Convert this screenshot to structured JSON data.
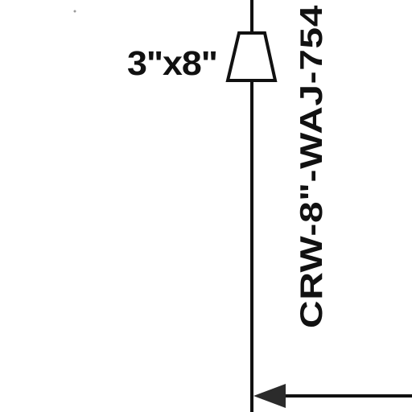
{
  "drawing": {
    "reducer_label": "3\"x8\"",
    "line_label": "CRW-8\"-WAJ-754",
    "ink_color": "#111111",
    "arrow_color": "#2b2b2b",
    "background_color": "#ffffff"
  }
}
